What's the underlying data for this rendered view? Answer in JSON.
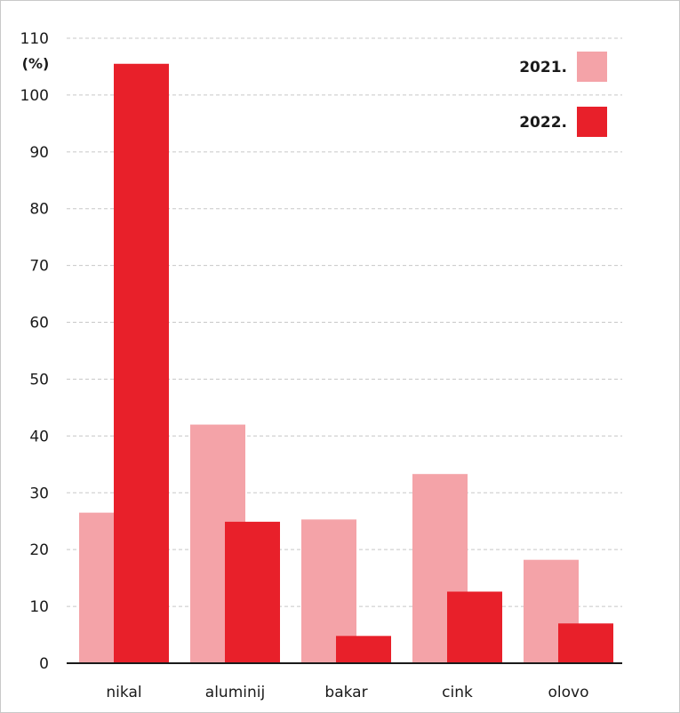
{
  "chart_data": {
    "type": "bar",
    "ylabel": "(%)",
    "ylim": [
      0,
      110
    ],
    "yticks": [
      0,
      10,
      20,
      30,
      40,
      50,
      60,
      70,
      80,
      90,
      100,
      110
    ],
    "grid": true,
    "legend_position": "top-right",
    "categories": [
      "nikal",
      "aluminij",
      "bakar",
      "cink",
      "olovo"
    ],
    "series": [
      {
        "name": "2021.",
        "color": "#f4a3a8",
        "values": [
          26.5,
          42,
          25.3,
          33.3,
          18.2
        ]
      },
      {
        "name": "2022.",
        "color": "#e8202a",
        "values": [
          105.5,
          24.9,
          4.8,
          12.6,
          7.0
        ]
      }
    ]
  }
}
